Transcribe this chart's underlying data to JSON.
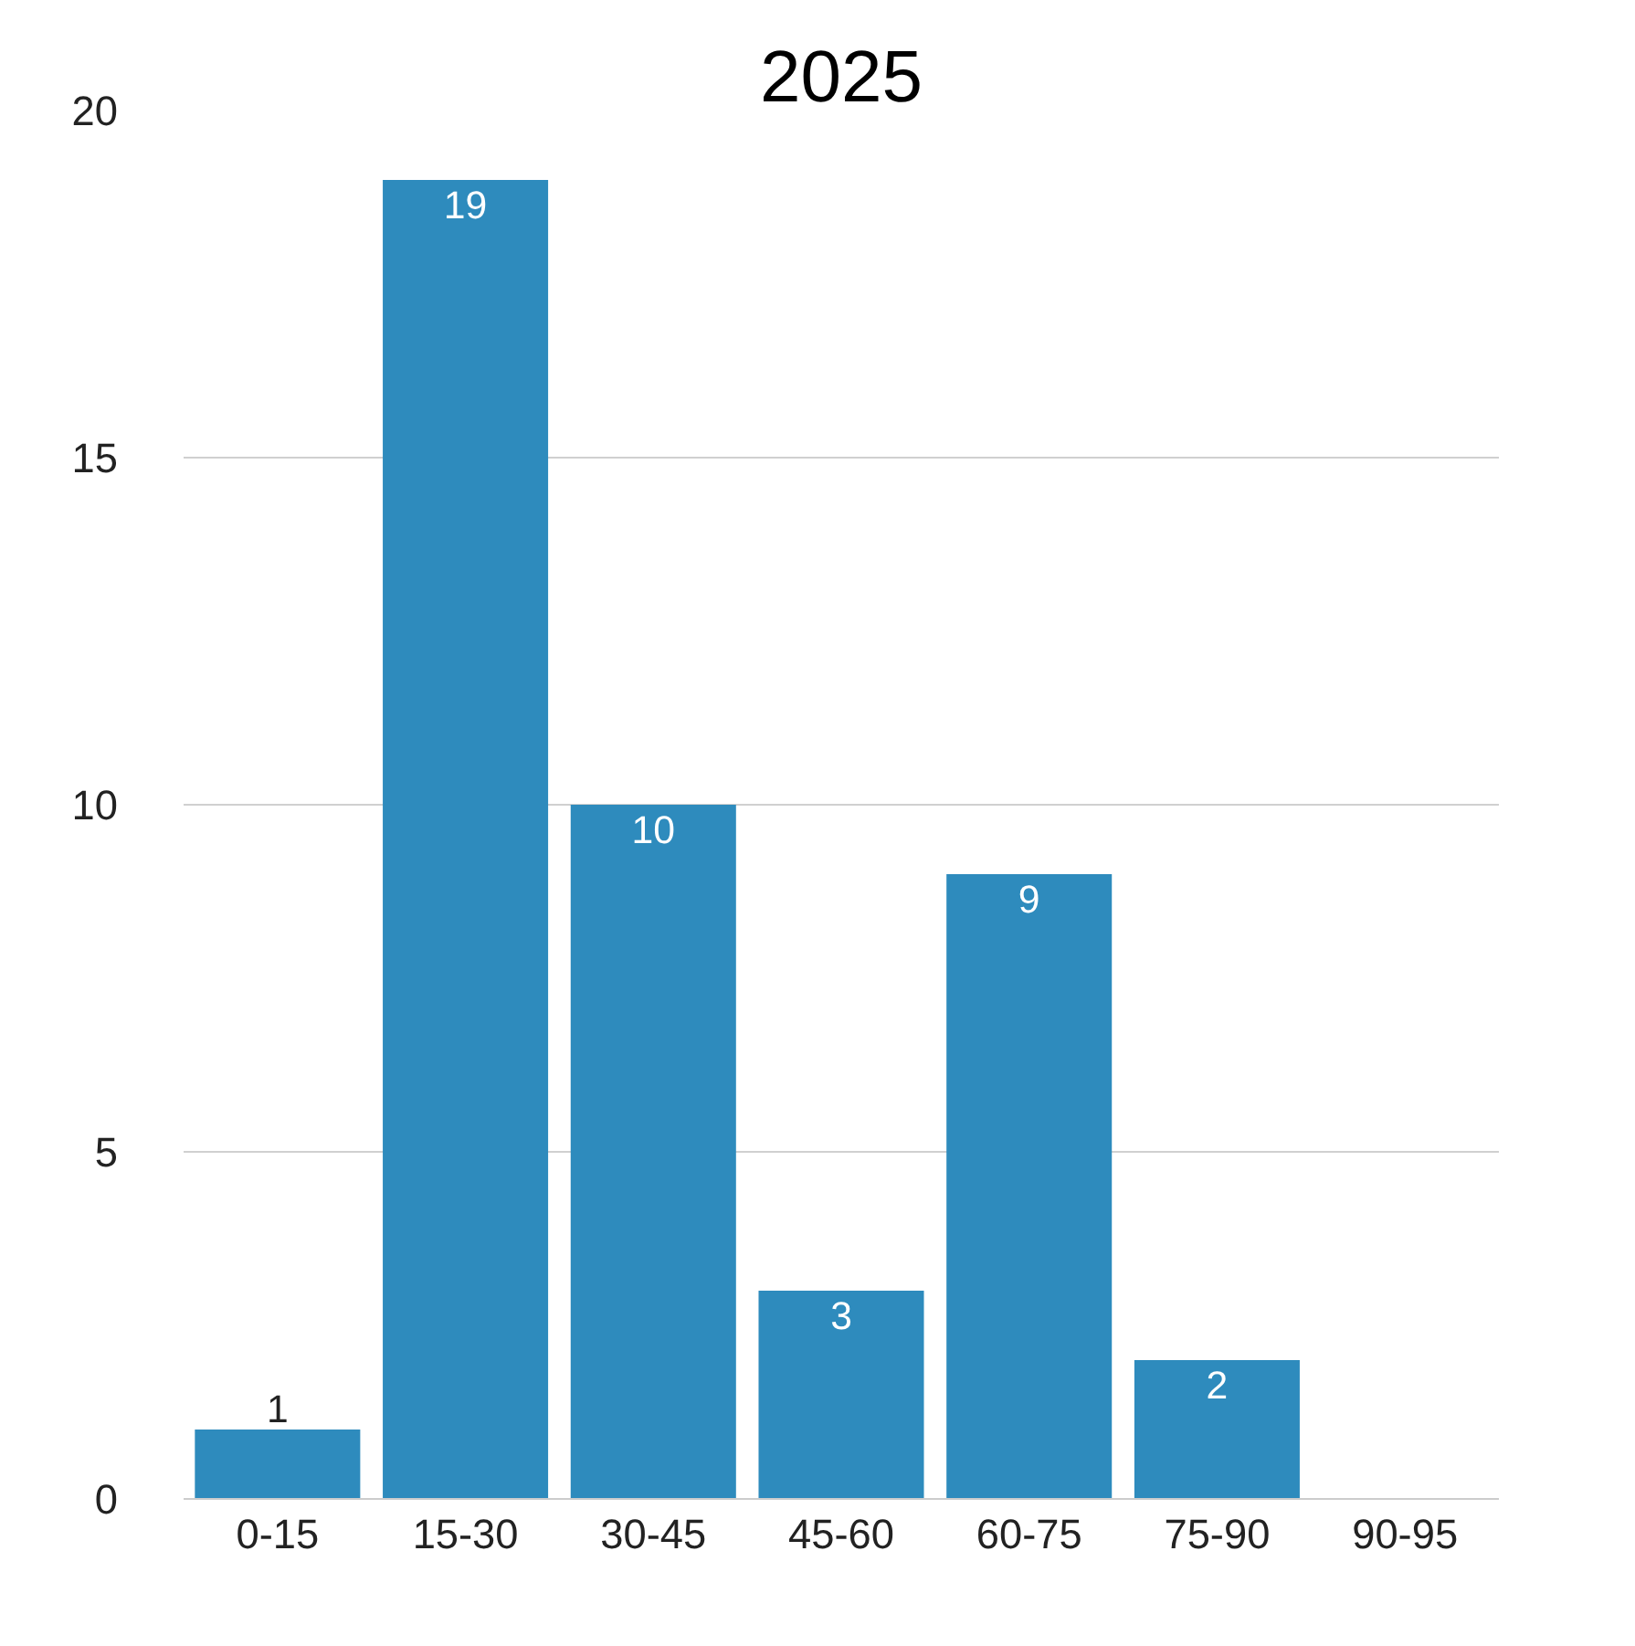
{
  "chart_data": {
    "type": "bar",
    "title": "2025",
    "categories": [
      "0-15",
      "15-30",
      "30-45",
      "45-60",
      "60-75",
      "75-90",
      "90-95"
    ],
    "values": [
      1,
      19,
      10,
      3,
      9,
      2,
      0
    ],
    "value_labels": [
      "1",
      "19",
      "10",
      "3",
      "9",
      "2",
      null
    ],
    "color": "#2e8bbd",
    "ylim": [
      0,
      20
    ],
    "yticks": [
      0,
      5,
      10,
      15,
      20
    ],
    "grid": "y"
  }
}
